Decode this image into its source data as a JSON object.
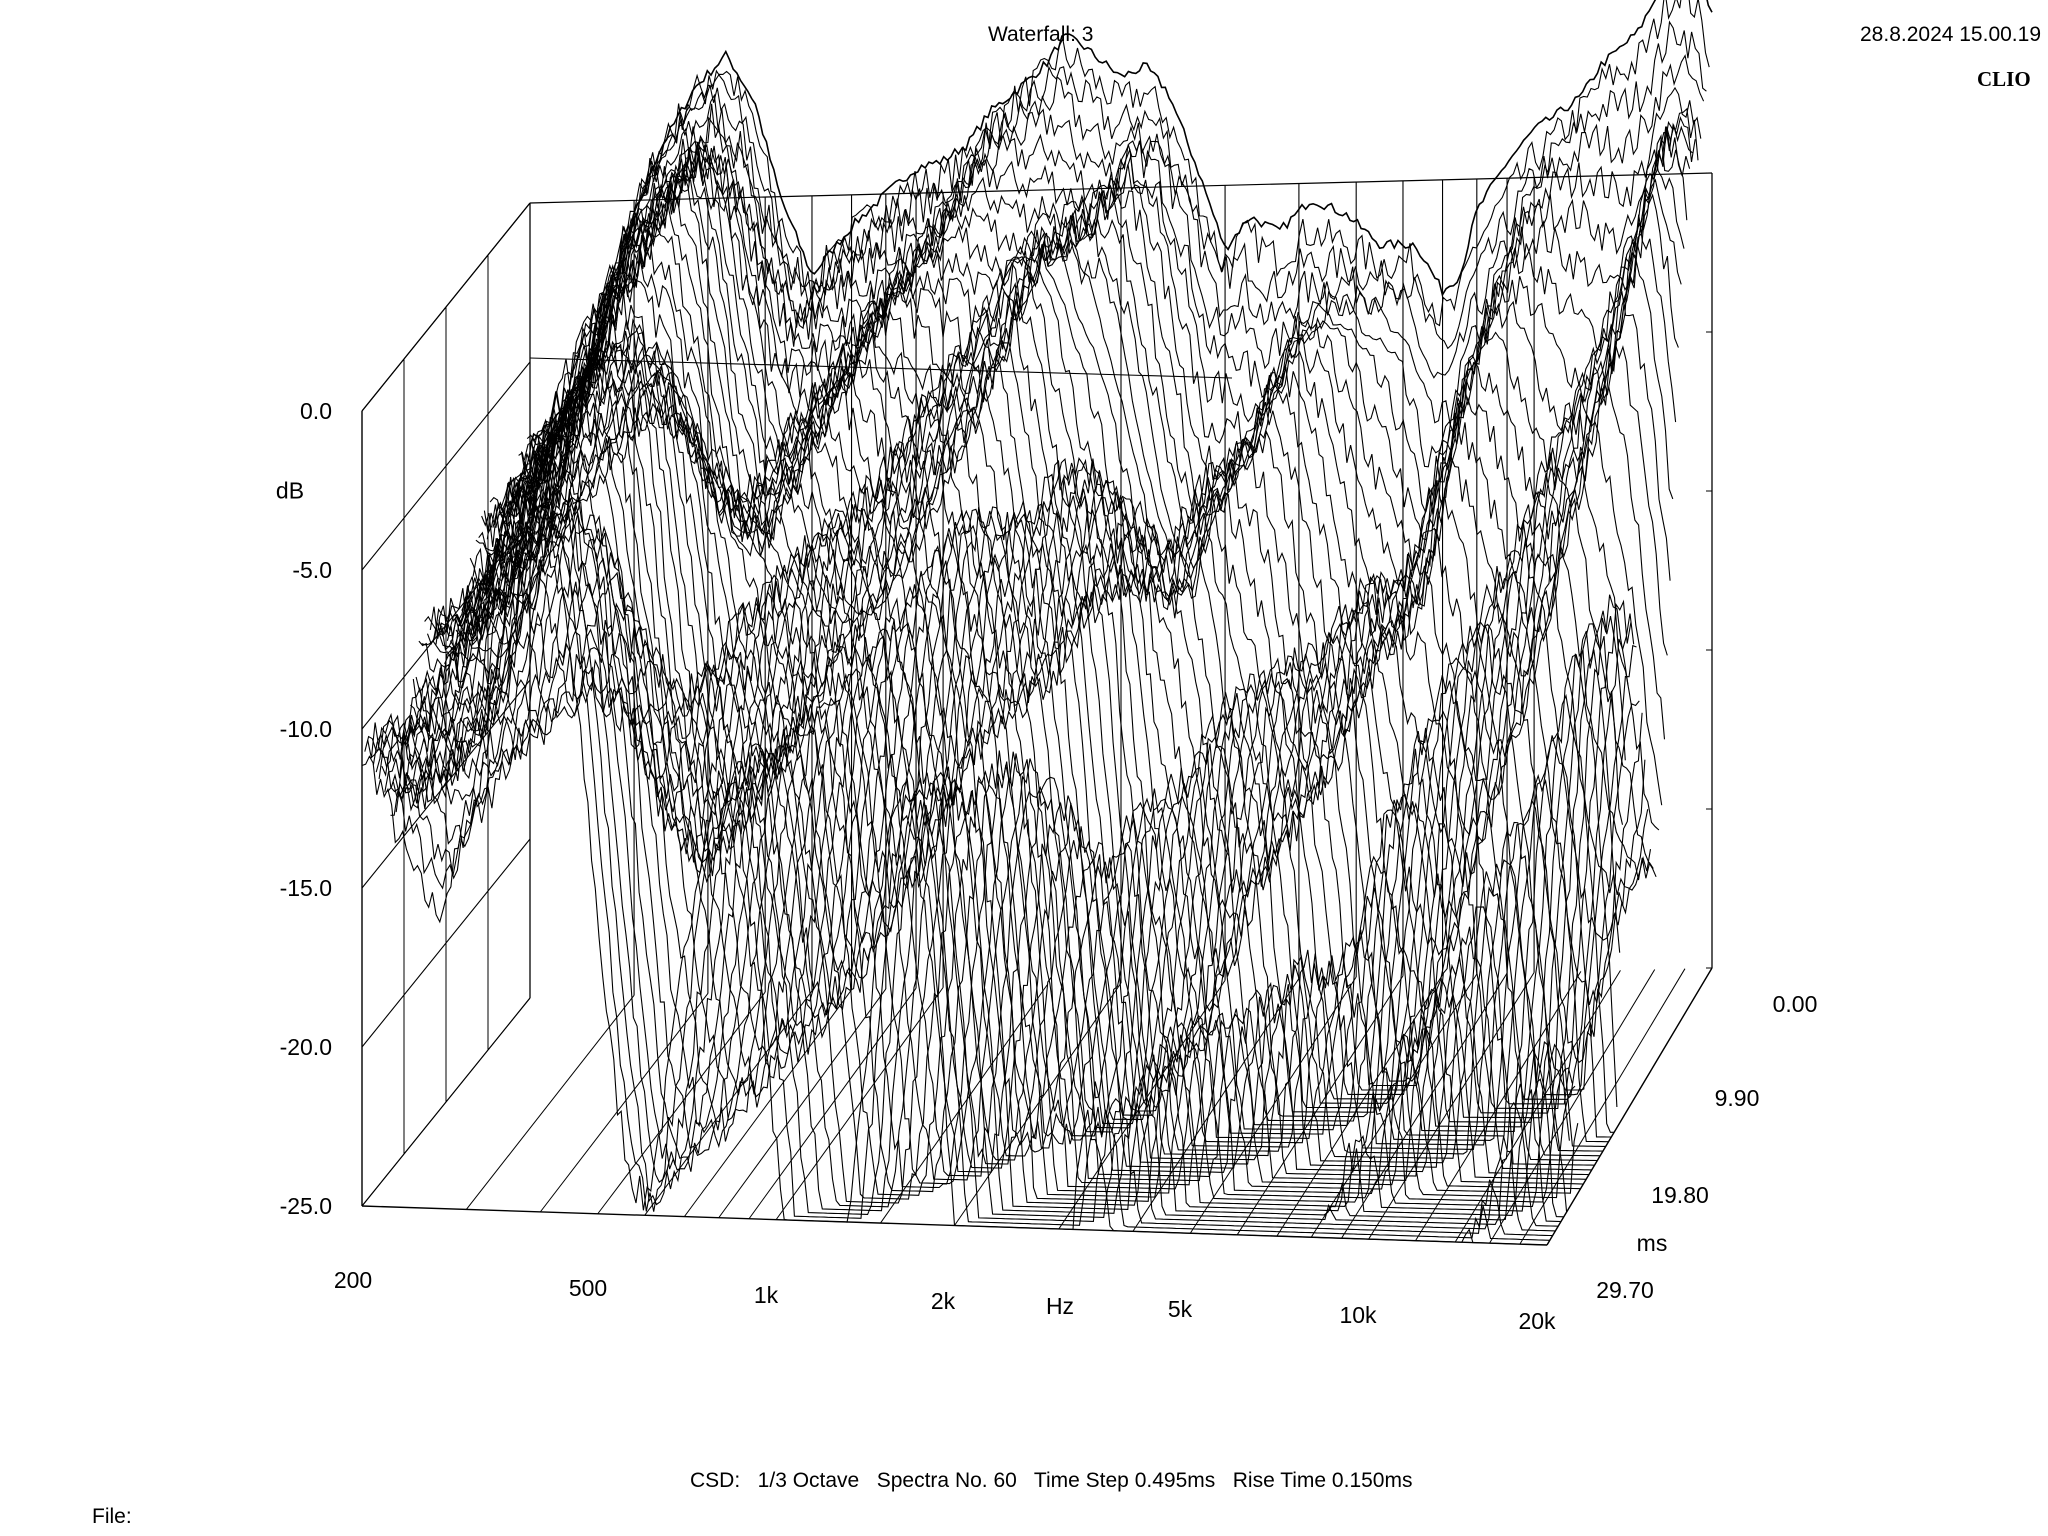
{
  "header": {
    "title": "Waterfall: 3",
    "datetime": "28.8.2024 15.00.19",
    "brand": "CLIO"
  },
  "footer": {
    "settings": "CSD:   1/3 Octave   Spectra No. 60   Time Step 0.495ms   Rise Time 0.150ms",
    "file_label": "File:"
  },
  "colors": {
    "background": "#ffffff",
    "lines": "#000000"
  },
  "chart_data": {
    "type": "waterfall",
    "title": "Waterfall: 3",
    "xlabel": "Hz",
    "ylabel": "dB",
    "zlabel": "ms",
    "x_scale": "log",
    "xlim": [
      200,
      20000
    ],
    "ylim": [
      -25,
      0
    ],
    "zlim": [
      0,
      29.7
    ],
    "x_ticks": [
      {
        "value": 200,
        "label": "200"
      },
      {
        "value": 500,
        "label": "500"
      },
      {
        "value": 1000,
        "label": "1k"
      },
      {
        "value": 2000,
        "label": "2k"
      },
      {
        "value": 5000,
        "label": "5k"
      },
      {
        "value": 10000,
        "label": "10k"
      },
      {
        "value": 20000,
        "label": "20k"
      }
    ],
    "y_ticks": [
      {
        "value": 0,
        "label": "0.0"
      },
      {
        "value": -5,
        "label": "-5.0"
      },
      {
        "value": -10,
        "label": "-10.0"
      },
      {
        "value": -15,
        "label": "-15.0"
      },
      {
        "value": -20,
        "label": "-20.0"
      },
      {
        "value": -25,
        "label": "-25.0"
      }
    ],
    "z_ticks": [
      {
        "value": 0,
        "label": "0.00"
      },
      {
        "value": 9.9,
        "label": "9.90"
      },
      {
        "value": 19.8,
        "label": "19.80"
      },
      {
        "value": 29.7,
        "label": "29.70"
      }
    ],
    "spectra_count": 60,
    "time_step_ms": 0.495,
    "rise_time_ms": 0.15,
    "smoothing": "1/3 Octave",
    "first_spectrum_db": {
      "freq_hz": [
        200,
        230,
        270,
        300,
        330,
        380,
        430,
        480,
        530,
        600,
        700,
        800,
        900,
        1000,
        1100,
        1200,
        1300,
        1400,
        1500,
        1600,
        1700,
        1800,
        2000,
        2200,
        2400,
        2700,
        3000,
        3300,
        3700,
        4200,
        4800,
        5500,
        6300,
        7000,
        7500,
        8000,
        9000,
        10000,
        11000,
        12000,
        13000,
        14000,
        15000,
        16000,
        17000,
        18000,
        19000,
        20000
      ],
      "level_db": [
        -7.5,
        -6.5,
        -4.0,
        -0.5,
        1.5,
        3.5,
        4.5,
        3.0,
        0.0,
        -2.5,
        -1.0,
        0.0,
        0.8,
        1.0,
        1.5,
        2.5,
        3.0,
        3.5,
        4.0,
        4.8,
        4.6,
        4.2,
        3.5,
        3.8,
        3.0,
        0.5,
        -2.0,
        -1.0,
        -1.5,
        -0.5,
        -1.0,
        -2.0,
        -2.0,
        -3.5,
        -3.0,
        -1.0,
        0.5,
        1.5,
        2.0,
        2.5,
        3.5,
        4.0,
        4.5,
        5.5,
        6.8,
        7.2,
        6.5,
        5.0
      ]
    }
  }
}
